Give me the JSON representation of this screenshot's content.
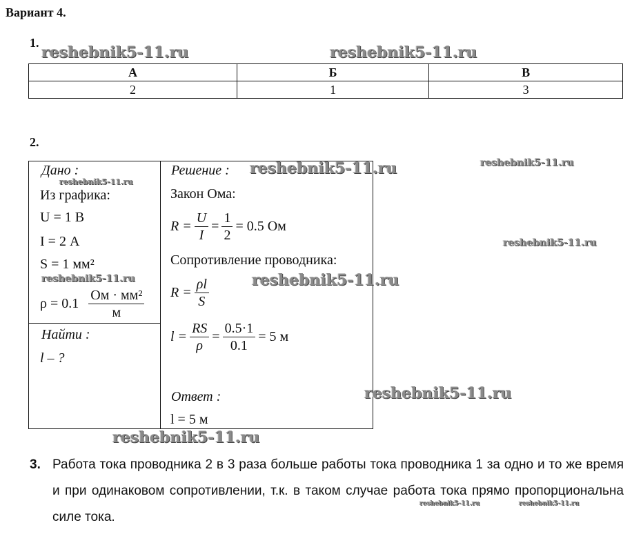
{
  "title": "Вариант 4.",
  "task1": {
    "number": "1.",
    "headers": [
      "А",
      "Б",
      "В"
    ],
    "values": [
      "2",
      "1",
      "3"
    ]
  },
  "task2": {
    "number": "2.",
    "given_label": "Дано :",
    "from_graph": "Из графика:",
    "U": "U = 1 В",
    "I": "I = 2 А",
    "S": "S = 1 мм²",
    "rho_left": "ρ = 0.1",
    "rho_num": "Ом · мм²",
    "rho_den": "м",
    "find_label": "Найти :",
    "find_value": "l – ?",
    "solution_label": "Решение :",
    "ohm_law": "Закон Ома:",
    "eq1": {
      "lhs": "R =",
      "n1": "U",
      "d1": "I",
      "n2": "1",
      "d2": "2",
      "result": "= 0.5 Ом"
    },
    "resistance_label": "Сопротивление проводника:",
    "eq2": {
      "lhs": "R =",
      "num": "ρl",
      "den": "S"
    },
    "eq3": {
      "lhs": "l =",
      "n1": "RS",
      "d1": "ρ",
      "n2": "0.5·1",
      "d2": "0.1",
      "result": "= 5 м"
    },
    "answer_label": "Ответ :",
    "answer": "l = 5 м"
  },
  "task3": {
    "number": "3.",
    "text": "Работа тока проводника 2 в 3 раза больше работы тока проводника 1 за одно и то же время и при одинаковом сопротивлении, т.к. в таком случае работа тока прямо пропорциональна силе тока."
  },
  "watermark": "reshebnik5-11.ru"
}
